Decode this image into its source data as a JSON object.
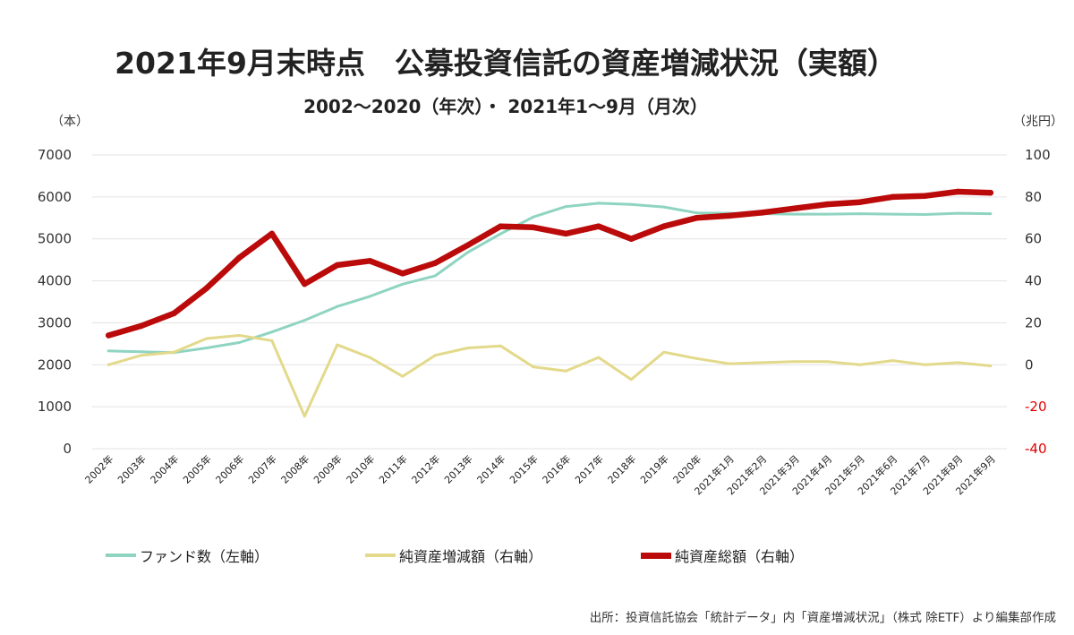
{
  "title": "2021年9月末時点　公募投資信託の資産増減状況（実額）",
  "subtitle": "2002〜2020（年次）・ 2021年1〜9月（月次）",
  "source": "出所：投資信託協会「統計データ」内「資産増減状況」（株式 除ETF）より編集部作成",
  "chart_data": {
    "type": "line",
    "categories": [
      "2002年",
      "2003年",
      "2004年",
      "2005年",
      "2006年",
      "2007年",
      "2008年",
      "2009年",
      "2010年",
      "2011年",
      "2012年",
      "2013年",
      "2014年",
      "2015年",
      "2016年",
      "2017年",
      "2018年",
      "2019年",
      "2020年",
      "2021年1月",
      "2021年2月",
      "2021年3月",
      "2021年4月",
      "2021年5月",
      "2021年6月",
      "2021年7月",
      "2021年8月",
      "2021年9月"
    ],
    "left_axis": {
      "unit": "（本）",
      "min": 0,
      "max": 7000,
      "ticks": [
        "0",
        "1000",
        "2000",
        "3000",
        "4000",
        "5000",
        "6000",
        "7000"
      ]
    },
    "right_axis": {
      "unit": "（兆円）",
      "min": -40,
      "max": 100,
      "ticks": [
        {
          "label": "-40",
          "value": -40,
          "negative": true
        },
        {
          "label": "-20",
          "value": -20,
          "negative": true
        },
        {
          "label": "0",
          "value": 0,
          "negative": false
        },
        {
          "label": "20",
          "value": 20,
          "negative": false
        },
        {
          "label": "40",
          "value": 40,
          "negative": false
        },
        {
          "label": "60",
          "value": 60,
          "negative": false
        },
        {
          "label": "80",
          "value": 80,
          "negative": false
        },
        {
          "label": "100",
          "value": 100,
          "negative": false
        }
      ]
    },
    "grid": true,
    "legend_position": "bottom",
    "series": [
      {
        "name": "ファンド数（左軸）",
        "axis": "left",
        "color": "#8fd4c1",
        "values": [
          2330,
          2310,
          2290,
          2400,
          2530,
          2780,
          3060,
          3390,
          3630,
          3920,
          4120,
          4680,
          5120,
          5520,
          5770,
          5850,
          5820,
          5760,
          5620,
          5610,
          5600,
          5590,
          5590,
          5600,
          5590,
          5580,
          5610,
          5600
        ]
      },
      {
        "name": "純資産増減額（右軸）",
        "axis": "right",
        "color": "#e3d98a",
        "values": [
          0,
          4.5,
          6,
          12.5,
          14,
          11.5,
          -24.5,
          9.5,
          3.5,
          -5.5,
          4.5,
          8,
          9,
          -1,
          -3,
          3.5,
          -7,
          6,
          3,
          0.5,
          1,
          1.5,
          1.5,
          0,
          2,
          0,
          1,
          -0.5
        ]
      },
      {
        "name": "純資産総額（右軸）",
        "axis": "right",
        "color": "#bb0a0a",
        "values": [
          14,
          18.5,
          24.5,
          36.5,
          51,
          62.5,
          38.5,
          47.5,
          49.5,
          43.5,
          48.5,
          57,
          66,
          65.5,
          62.5,
          66,
          60,
          66,
          70,
          71,
          72.5,
          74.5,
          76.5,
          77.5,
          80,
          80.5,
          82.5,
          82
        ]
      }
    ]
  }
}
